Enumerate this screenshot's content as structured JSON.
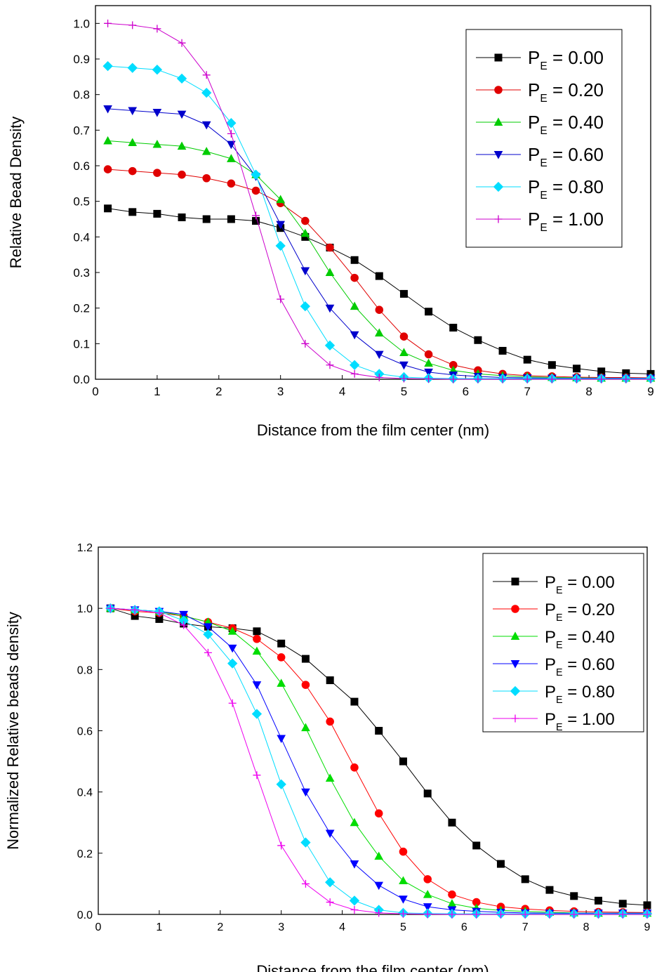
{
  "chart_data": [
    {
      "type": "line",
      "y_label": "Relative Bead Density",
      "x_label": "Distance from the film center (nm)",
      "xlim": [
        0,
        9
      ],
      "ylim": [
        0,
        1.05
      ],
      "xticks": [
        0,
        1,
        2,
        3,
        4,
        5,
        6,
        7,
        8,
        9
      ],
      "yticks": [
        {
          "value": 0,
          "label": "0.0"
        },
        {
          "value": 0.1,
          "label": "0.1"
        },
        {
          "value": 0.2,
          "label": "0.2"
        },
        {
          "value": 0.3,
          "label": "0.3"
        },
        {
          "value": 0.4,
          "label": "0.4"
        },
        {
          "value": 0.5,
          "label": "0.5"
        },
        {
          "value": 0.6,
          "label": "0.6"
        },
        {
          "value": 0.7,
          "label": "0.7"
        },
        {
          "value": 0.8,
          "label": "0.8"
        },
        {
          "value": 0.9,
          "label": "0.9"
        },
        {
          "value": 1,
          "label": "1.0"
        }
      ],
      "legend": "upper right",
      "x": [
        0.2,
        0.6,
        1.0,
        1.4,
        1.8,
        2.2,
        2.6,
        3.0,
        3.4,
        3.8,
        4.2,
        4.6,
        5.0,
        5.4,
        5.8,
        6.2,
        6.6,
        7.0,
        7.4,
        7.8,
        8.2,
        8.6,
        9.0
      ],
      "series": [
        {
          "name": "PE = 0.00",
          "color": "#000000",
          "marker": "square",
          "values": [
            0.48,
            0.47,
            0.465,
            0.455,
            0.45,
            0.45,
            0.445,
            0.425,
            0.4,
            0.37,
            0.335,
            0.29,
            0.24,
            0.19,
            0.145,
            0.11,
            0.08,
            0.055,
            0.04,
            0.03,
            0.022,
            0.017,
            0.015
          ]
        },
        {
          "name": "PE = 0.20",
          "color": "#e00000",
          "marker": "circle",
          "values": [
            0.59,
            0.585,
            0.58,
            0.575,
            0.565,
            0.55,
            0.53,
            0.495,
            0.445,
            0.37,
            0.285,
            0.195,
            0.12,
            0.07,
            0.04,
            0.025,
            0.015,
            0.01,
            0.008,
            0.006,
            0.005,
            0.005,
            0.004
          ]
        },
        {
          "name": "PE = 0.40",
          "color": "#00cc00",
          "marker": "triangle-up",
          "values": [
            0.67,
            0.665,
            0.66,
            0.655,
            0.64,
            0.62,
            0.575,
            0.505,
            0.41,
            0.3,
            0.205,
            0.13,
            0.075,
            0.045,
            0.025,
            0.015,
            0.01,
            0.007,
            0.005,
            0.004,
            0.003,
            0.003,
            0.003
          ]
        },
        {
          "name": "PE = 0.60",
          "color": "#0000cc",
          "marker": "triangle-down",
          "values": [
            0.76,
            0.755,
            0.75,
            0.745,
            0.715,
            0.66,
            0.57,
            0.435,
            0.305,
            0.2,
            0.125,
            0.07,
            0.04,
            0.02,
            0.012,
            0.008,
            0.005,
            0.004,
            0.003,
            0.003,
            0.003,
            0.003,
            0.003
          ]
        },
        {
          "name": "PE = 0.80",
          "color": "#00ddff",
          "marker": "diamond",
          "values": [
            0.88,
            0.875,
            0.87,
            0.845,
            0.805,
            0.72,
            0.575,
            0.375,
            0.205,
            0.095,
            0.04,
            0.015,
            0.006,
            0.003,
            0.002,
            0.002,
            0.002,
            0.002,
            0.002,
            0.002,
            0.002,
            0.002,
            0.002
          ]
        },
        {
          "name": "PE = 1.00",
          "color": "#cc00cc",
          "marker": "plus",
          "values": [
            1.0,
            0.995,
            0.985,
            0.945,
            0.855,
            0.69,
            0.46,
            0.225,
            0.1,
            0.04,
            0.015,
            0.005,
            0.002,
            0.001,
            0,
            0,
            0,
            0,
            0,
            0,
            0,
            0,
            0
          ]
        }
      ]
    },
    {
      "type": "line",
      "y_label": "Normalized Relative beads density",
      "x_label": "Distance from the film center (nm)",
      "xlim": [
        0,
        9
      ],
      "ylim": [
        0,
        1.2
      ],
      "xticks": [
        0,
        1,
        2,
        3,
        4,
        5,
        6,
        7,
        8,
        9
      ],
      "yticks": [
        {
          "value": 0,
          "label": "0.0"
        },
        {
          "value": 0.2,
          "label": "0.2"
        },
        {
          "value": 0.4,
          "label": "0.4"
        },
        {
          "value": 0.6,
          "label": "0.6"
        },
        {
          "value": 0.8,
          "label": "0.8"
        },
        {
          "value": 1,
          "label": "1.0"
        },
        {
          "value": 1.2,
          "label": "1.2"
        }
      ],
      "legend": "upper right",
      "x": [
        0.2,
        0.6,
        1.0,
        1.4,
        1.8,
        2.2,
        2.6,
        3.0,
        3.4,
        3.8,
        4.2,
        4.6,
        5.0,
        5.4,
        5.8,
        6.2,
        6.6,
        7.0,
        7.4,
        7.8,
        8.2,
        8.6,
        9.0
      ],
      "series": [
        {
          "name": "PE = 0.00",
          "color": "#000000",
          "marker": "square",
          "values": [
            1.0,
            0.975,
            0.965,
            0.95,
            0.94,
            0.935,
            0.925,
            0.885,
            0.835,
            0.765,
            0.695,
            0.6,
            0.5,
            0.395,
            0.3,
            0.225,
            0.165,
            0.115,
            0.08,
            0.06,
            0.045,
            0.035,
            0.03
          ]
        },
        {
          "name": "PE = 0.20",
          "color": "#ff0000",
          "marker": "circle",
          "values": [
            1.0,
            0.99,
            0.985,
            0.975,
            0.955,
            0.935,
            0.9,
            0.84,
            0.75,
            0.63,
            0.48,
            0.33,
            0.205,
            0.115,
            0.065,
            0.04,
            0.025,
            0.018,
            0.013,
            0.01,
            0.008,
            0.007,
            0.006
          ]
        },
        {
          "name": "PE = 0.40",
          "color": "#00dd00",
          "marker": "triangle-up",
          "values": [
            1.0,
            0.995,
            0.99,
            0.975,
            0.955,
            0.925,
            0.86,
            0.755,
            0.61,
            0.445,
            0.3,
            0.19,
            0.11,
            0.065,
            0.035,
            0.02,
            0.013,
            0.01,
            0.007,
            0.005,
            0.004,
            0.004,
            0.004
          ]
        },
        {
          "name": "PE = 0.60",
          "color": "#0000ff",
          "marker": "triangle-down",
          "values": [
            1.0,
            0.995,
            0.99,
            0.98,
            0.94,
            0.87,
            0.75,
            0.575,
            0.4,
            0.265,
            0.165,
            0.095,
            0.05,
            0.025,
            0.015,
            0.01,
            0.007,
            0.005,
            0.004,
            0.004,
            0.004,
            0.004,
            0.004
          ]
        },
        {
          "name": "PE = 0.80",
          "color": "#00ddff",
          "marker": "diamond",
          "values": [
            1.0,
            0.995,
            0.99,
            0.96,
            0.915,
            0.82,
            0.655,
            0.425,
            0.235,
            0.105,
            0.045,
            0.015,
            0.005,
            0.003,
            0.002,
            0.002,
            0.002,
            0.002,
            0.002,
            0.002,
            0.002,
            0.002,
            0.002
          ]
        },
        {
          "name": "PE = 1.00",
          "color": "#ee00ee",
          "marker": "plus",
          "values": [
            1.0,
            0.995,
            0.985,
            0.945,
            0.855,
            0.69,
            0.455,
            0.225,
            0.1,
            0.04,
            0.015,
            0.005,
            0.002,
            0.001,
            0,
            0,
            0,
            0,
            0,
            0,
            0,
            0,
            0
          ]
        }
      ]
    }
  ]
}
